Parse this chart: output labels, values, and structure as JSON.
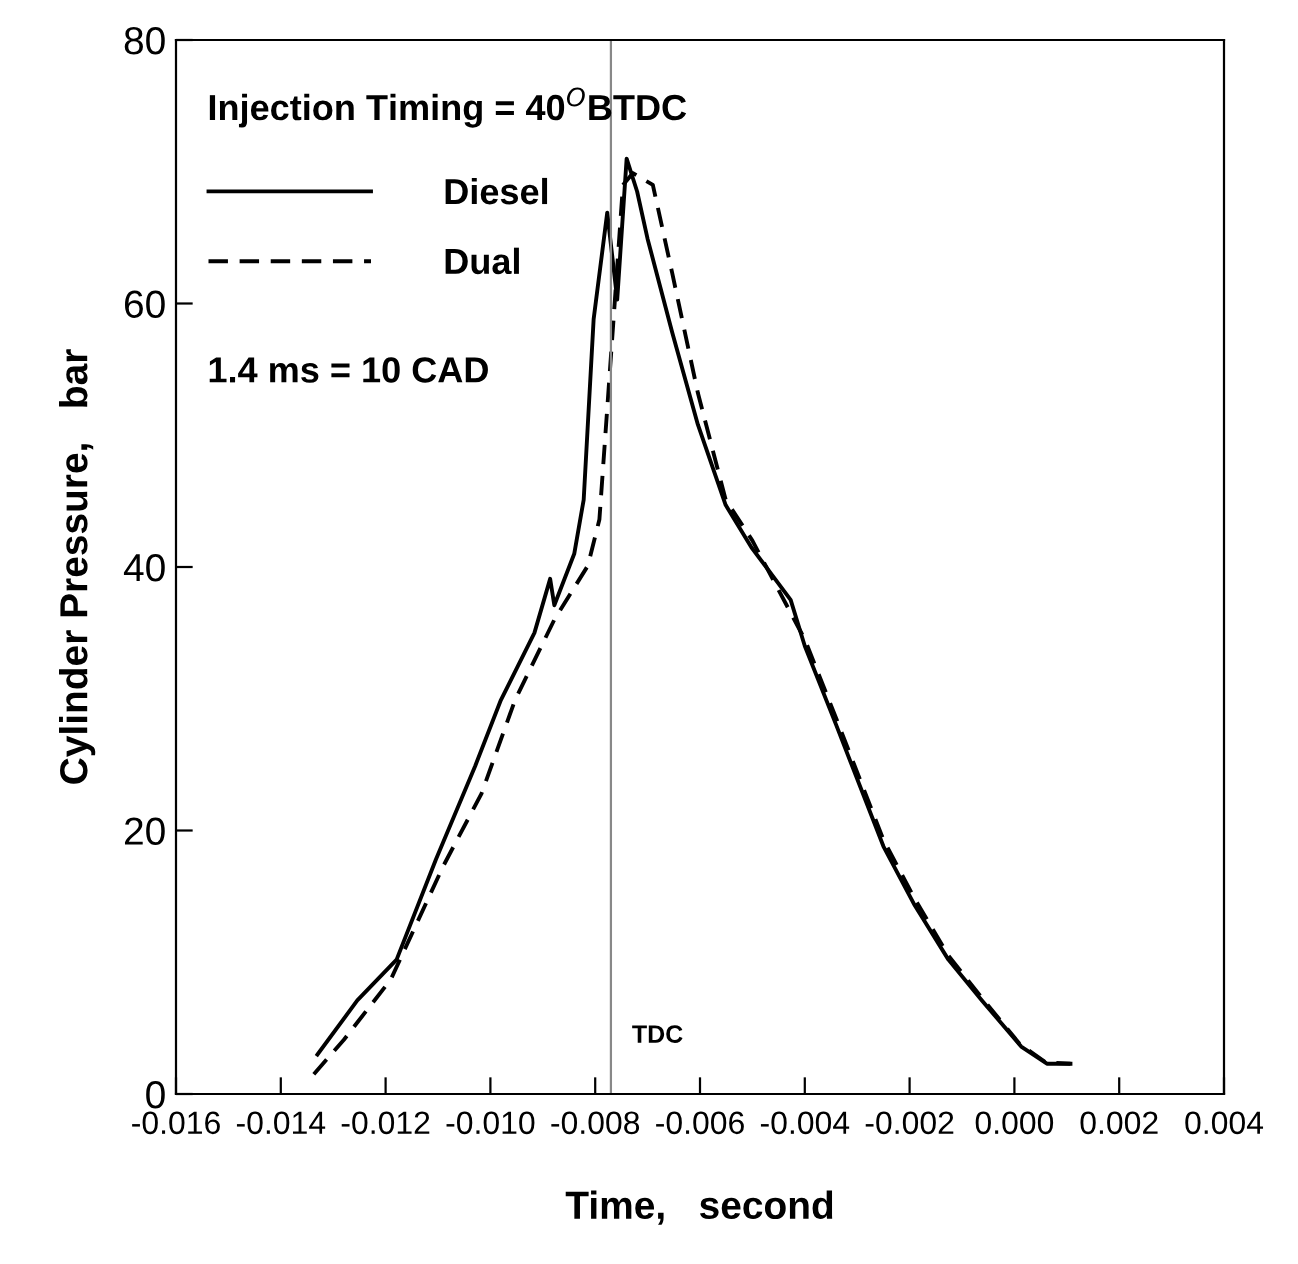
{
  "chart_data": {
    "type": "line",
    "xlabel": "Time,   second",
    "ylabel": "Cylinder Pressure,   bar",
    "xlim": [
      -0.016,
      0.004
    ],
    "xticks": [
      {
        "value": -0.016,
        "label": "-0.016"
      },
      {
        "value": -0.014,
        "label": "-0.014"
      },
      {
        "value": -0.012,
        "label": "-0.012"
      },
      {
        "value": -0.01,
        "label": "-0.010"
      },
      {
        "value": -0.008,
        "label": "-0.008"
      },
      {
        "value": -0.006,
        "label": "-0.006"
      },
      {
        "value": -0.004,
        "label": "-0.004"
      },
      {
        "value": -0.002,
        "label": "-0.002"
      },
      {
        "value": 0.0,
        "label": "0.000"
      },
      {
        "value": 0.002,
        "label": "0.002"
      },
      {
        "value": 0.004,
        "label": "0.004"
      }
    ],
    "ylim": [
      0,
      80
    ],
    "yticks": [
      0,
      20,
      40,
      60,
      80
    ],
    "grid": false,
    "legend": "top left",
    "annotations": [
      "Injection Timing = 40$^{O}$BTDC",
      "1.4 ms = 10 CAD"
    ],
    "ref_lines": [
      {
        "axis": "x",
        "value": -0.0077,
        "label": "TDC",
        "color": "#888888"
      }
    ],
    "series": [
      {
        "name": "Diesel",
        "color": "#000000",
        "line_style": "solid",
        "x": [
          -0.0133,
          -0.01254,
          -0.01179,
          -0.01104,
          -0.01029,
          -0.0098,
          -0.00916,
          -0.00886,
          -0.00878,
          -0.0084,
          -0.00822,
          -0.00803,
          -0.00777,
          -0.00758,
          -0.0074,
          -0.0072,
          -0.007,
          -0.00653,
          -0.00604,
          -0.00551,
          -0.00502,
          -0.00427,
          -0.004,
          -0.0034,
          -0.0025,
          -0.0019,
          -0.00126,
          -0.00062,
          0.00013,
          0.00062,
          0.00107
        ],
        "values": [
          3.0,
          7.1,
          10.2,
          17.8,
          24.9,
          29.9,
          35.0,
          39.1,
          37.1,
          41.0,
          45.1,
          58.8,
          66.9,
          60.3,
          71.0,
          68.5,
          64.9,
          57.8,
          50.8,
          44.7,
          41.5,
          37.5,
          34.0,
          28.0,
          18.8,
          14.3,
          10.2,
          7.1,
          3.6,
          2.3,
          2.3
        ]
      },
      {
        "name": "Dual",
        "color": "#000000",
        "line_style": "dashed",
        "x": [
          -0.01337,
          -0.0128,
          -0.0119,
          -0.0109,
          -0.01017,
          -0.00953,
          -0.00878,
          -0.00814,
          -0.00792,
          -0.00765,
          -0.00747,
          -0.00728,
          -0.0069,
          -0.00653,
          -0.00604,
          -0.00551,
          -0.005,
          -0.004,
          -0.0034,
          -0.0025,
          -0.0019,
          -0.00126,
          -0.0006,
          0.0001,
          0.0006,
          0.00107
        ],
        "values": [
          1.5,
          4.1,
          8.7,
          17.3,
          22.8,
          29.9,
          36.0,
          40.1,
          43.6,
          58.8,
          69.0,
          69.9,
          69.0,
          62.3,
          53.2,
          45.1,
          42.0,
          34.5,
          28.5,
          19.3,
          14.8,
          10.5,
          7.2,
          3.8,
          2.4,
          2.3
        ]
      }
    ]
  }
}
